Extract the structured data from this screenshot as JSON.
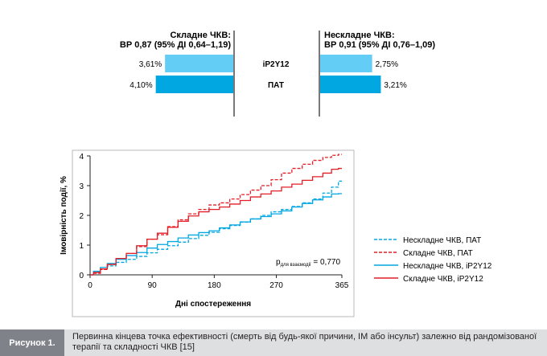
{
  "colors": {
    "light_blue": "#63cdf5",
    "dark_blue": "#00a7e1",
    "red": "#e31e26",
    "text": "#231f20",
    "caption_label_bg": "#7f8389",
    "caption_text_bg": "#dedfe1"
  },
  "top_comparison": {
    "left": {
      "title": "Складне ЧКВ:",
      "subtitle": "ВР 0,87 (95% ДІ 0,64–1,19)",
      "values": [
        3.61,
        4.1
      ],
      "labels": [
        "3,61%",
        "4,10%"
      ]
    },
    "right": {
      "title": "Нескладне ЧКВ:",
      "subtitle": "ВР 0,91 (95% ДІ 0,76–1,09)",
      "values": [
        2.75,
        3.21
      ],
      "labels": [
        "2,75%",
        "3,21%"
      ]
    },
    "rows": [
      "iP2Y12",
      "ПАТ"
    ]
  },
  "chart_data": {
    "type": "line",
    "xlabel": "Дні спостереження",
    "ylabel": "Імовірність події, %",
    "xlim": [
      0,
      365
    ],
    "ylim": [
      0,
      4
    ],
    "xticks": [
      0,
      90,
      180,
      270,
      365
    ],
    "yticks": [
      0,
      1,
      2,
      3,
      4
    ],
    "grid": false,
    "legend_position": "right",
    "annotation": "p для взаємодії = 0,770",
    "series": [
      {
        "name": "Нескладне ЧКВ, ПАТ",
        "color": "#00a7e1",
        "style": "dashed",
        "x": [
          0,
          10,
          20,
          30,
          45,
          60,
          75,
          90,
          105,
          120,
          135,
          150,
          165,
          180,
          195,
          210,
          225,
          240,
          255,
          270,
          285,
          300,
          315,
          330,
          345,
          355,
          365
        ],
        "y": [
          0,
          0.1,
          0.2,
          0.3,
          0.42,
          0.52,
          0.62,
          0.74,
          0.86,
          0.98,
          1.1,
          1.22,
          1.33,
          1.43,
          1.55,
          1.66,
          1.77,
          1.88,
          2.0,
          2.12,
          2.2,
          2.3,
          2.42,
          2.55,
          2.75,
          2.95,
          3.15
        ]
      },
      {
        "name": "Складне ЧКВ, ПАТ",
        "color": "#e31e26",
        "style": "dashed",
        "x": [
          0,
          10,
          20,
          30,
          45,
          60,
          75,
          90,
          105,
          120,
          135,
          150,
          165,
          180,
          195,
          210,
          225,
          240,
          255,
          270,
          285,
          300,
          315,
          330,
          345,
          355,
          365
        ],
        "y": [
          0,
          0.05,
          0.18,
          0.35,
          0.55,
          0.72,
          0.95,
          1.2,
          1.35,
          1.62,
          1.85,
          2.05,
          2.2,
          2.35,
          2.42,
          2.55,
          2.7,
          2.85,
          3.0,
          3.2,
          3.42,
          3.58,
          3.72,
          3.85,
          3.95,
          4.02,
          4.05
        ]
      },
      {
        "name": "Нескладне ЧКВ, iP2Y12",
        "color": "#00a7e1",
        "style": "solid",
        "x": [
          0,
          10,
          20,
          30,
          45,
          60,
          75,
          90,
          105,
          120,
          135,
          150,
          165,
          180,
          195,
          210,
          225,
          240,
          255,
          270,
          285,
          300,
          315,
          330,
          345,
          355,
          365
        ],
        "y": [
          0,
          0.12,
          0.25,
          0.38,
          0.52,
          0.65,
          0.75,
          0.9,
          1.02,
          1.12,
          1.24,
          1.34,
          1.42,
          1.48,
          1.58,
          1.68,
          1.78,
          1.88,
          1.96,
          2.05,
          2.15,
          2.28,
          2.4,
          2.52,
          2.62,
          2.72,
          2.73
        ]
      },
      {
        "name": "Складне ЧКВ, iP2Y12",
        "color": "#e31e26",
        "style": "solid",
        "x": [
          0,
          10,
          20,
          30,
          45,
          60,
          75,
          90,
          105,
          120,
          135,
          150,
          165,
          180,
          195,
          210,
          225,
          240,
          255,
          270,
          285,
          300,
          315,
          330,
          345,
          355,
          365
        ],
        "y": [
          0,
          0.08,
          0.2,
          0.35,
          0.55,
          0.72,
          0.98,
          1.2,
          1.4,
          1.6,
          1.8,
          1.98,
          2.12,
          2.2,
          2.28,
          2.38,
          2.5,
          2.62,
          2.72,
          2.82,
          2.95,
          3.05,
          3.18,
          3.3,
          3.42,
          3.55,
          3.58
        ]
      }
    ]
  },
  "caption": {
    "label": "Рисунок 1.",
    "text": "Первинна кінцева точка ефективності (смерть від будь-якої причини, ІМ або інсульт) залежно від рандомізованої терапії та складності ЧКВ [15]"
  }
}
